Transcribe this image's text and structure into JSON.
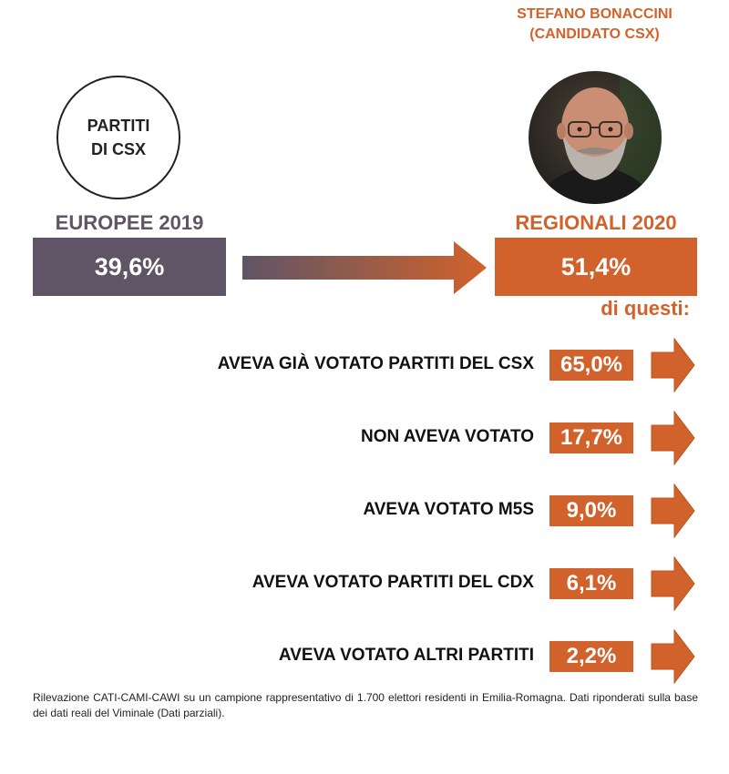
{
  "colors": {
    "orange": "#d2622b",
    "gray": "#5f5566",
    "dark": "#111111"
  },
  "circle": {
    "line1": "PARTITI",
    "line2": "DI CSX"
  },
  "candidate": {
    "line1": "STEFANO BONACCINI",
    "line2": "(CANDIDATO CSX)"
  },
  "left": {
    "label": "EUROPEE 2019",
    "value": "39,6%"
  },
  "right": {
    "label": "REGIONALI 2020",
    "value": "51,4%"
  },
  "subheader": "di questi:",
  "chart_data": {
    "type": "bar",
    "categories": [
      "AVEVA GIÀ VOTATO PARTITI DEL CSX",
      "NON AVEVA VOTATO",
      "AVEVA VOTATO M5S",
      "AVEVA VOTATO PARTITI DEL CDX",
      "AVEVA VOTATO ALTRI PARTITI"
    ],
    "values": [
      65.0,
      17.7,
      9.0,
      6.1,
      2.2
    ],
    "value_labels": [
      "65,0%",
      "17,7%",
      "9,0%",
      "6,1%",
      "2,2%"
    ],
    "comparison": {
      "EUROPEE 2019": 39.6,
      "REGIONALI 2020": 51.4
    }
  },
  "note": "Rilevazione CATI-CAMI-CAWI su un campione rappresentativo di 1.700 elettori residenti in Emilia-Romagna. Dati riponderati sulla base dei dati reali del Viminale (Dati parziali)."
}
